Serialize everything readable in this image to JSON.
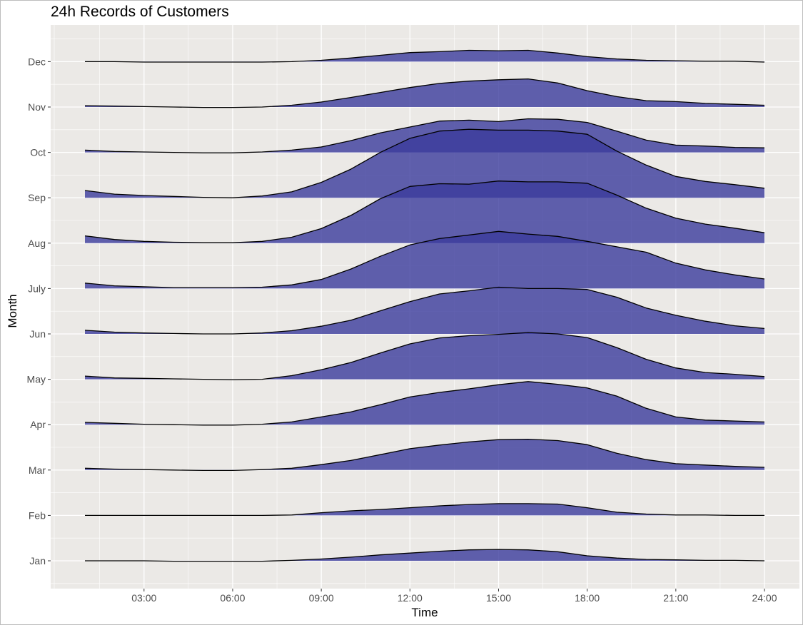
{
  "chart_data": {
    "type": "ridgeline",
    "title": "24h Records of Customers",
    "xlabel": "Time",
    "ylabel": "Month",
    "x_tick_labels": [
      "03:00",
      "06:00",
      "09:00",
      "12:00",
      "15:00",
      "18:00",
      "21:00",
      "24:00"
    ],
    "x_tick_hours": [
      3,
      6,
      9,
      12,
      15,
      18,
      21,
      24
    ],
    "xlim": [
      0,
      25
    ],
    "hours": [
      1,
      2,
      3,
      4,
      5,
      6,
      7,
      8,
      9,
      10,
      11,
      12,
      13,
      14,
      15,
      16,
      17,
      18,
      19,
      20,
      21,
      22,
      23,
      24
    ],
    "row_spacing_units": 1,
    "fill_color": "#3b3b9c",
    "line_color": "#000000",
    "panel_background": "#ebe9e6",
    "grid_color": "#ffffff",
    "grid": true,
    "legend": "none",
    "series": [
      {
        "name": "Jan",
        "values": [
          0.0,
          0.0,
          0.0,
          -0.01,
          -0.01,
          -0.01,
          -0.01,
          0.01,
          0.04,
          0.08,
          0.13,
          0.17,
          0.21,
          0.24,
          0.25,
          0.24,
          0.2,
          0.11,
          0.06,
          0.03,
          0.02,
          0.01,
          0.01,
          0.0
        ]
      },
      {
        "name": "Feb",
        "values": [
          0.0,
          0.0,
          0.0,
          0.0,
          0.0,
          0.0,
          0.0,
          0.01,
          0.06,
          0.1,
          0.13,
          0.17,
          0.21,
          0.24,
          0.26,
          0.26,
          0.25,
          0.17,
          0.07,
          0.03,
          0.01,
          0.01,
          0.0,
          0.0
        ]
      },
      {
        "name": "Mar",
        "values": [
          0.04,
          0.02,
          0.01,
          0.0,
          -0.01,
          -0.01,
          0.01,
          0.04,
          0.12,
          0.21,
          0.34,
          0.47,
          0.55,
          0.62,
          0.67,
          0.68,
          0.65,
          0.56,
          0.37,
          0.23,
          0.14,
          0.11,
          0.08,
          0.06
        ]
      },
      {
        "name": "Apr",
        "values": [
          0.05,
          0.03,
          0.01,
          0.0,
          -0.01,
          -0.01,
          0.01,
          0.06,
          0.17,
          0.28,
          0.44,
          0.61,
          0.71,
          0.79,
          0.88,
          0.95,
          0.89,
          0.81,
          0.63,
          0.36,
          0.17,
          0.1,
          0.08,
          0.06
        ]
      },
      {
        "name": "May",
        "values": [
          0.07,
          0.03,
          0.02,
          0.01,
          0.0,
          -0.01,
          0.0,
          0.08,
          0.21,
          0.37,
          0.58,
          0.78,
          0.91,
          0.96,
          0.99,
          1.03,
          1.0,
          0.92,
          0.7,
          0.44,
          0.25,
          0.15,
          0.11,
          0.06
        ]
      },
      {
        "name": "Jun",
        "values": [
          0.08,
          0.04,
          0.02,
          0.01,
          0.0,
          0.0,
          0.02,
          0.07,
          0.17,
          0.3,
          0.51,
          0.71,
          0.88,
          0.95,
          1.03,
          1.0,
          1.0,
          0.98,
          0.81,
          0.57,
          0.41,
          0.28,
          0.18,
          0.12
        ]
      },
      {
        "name": "July",
        "values": [
          0.12,
          0.06,
          0.04,
          0.02,
          0.02,
          0.02,
          0.03,
          0.08,
          0.2,
          0.43,
          0.71,
          0.96,
          1.1,
          1.18,
          1.26,
          1.2,
          1.15,
          1.04,
          0.92,
          0.8,
          0.56,
          0.41,
          0.3,
          0.21
        ]
      },
      {
        "name": "Aug",
        "values": [
          0.16,
          0.08,
          0.04,
          0.02,
          0.01,
          0.01,
          0.04,
          0.13,
          0.32,
          0.61,
          0.98,
          1.25,
          1.31,
          1.3,
          1.37,
          1.35,
          1.35,
          1.32,
          1.06,
          0.77,
          0.55,
          0.42,
          0.33,
          0.23
        ]
      },
      {
        "name": "Sep",
        "values": [
          0.16,
          0.08,
          0.05,
          0.03,
          0.01,
          0.0,
          0.04,
          0.13,
          0.34,
          0.63,
          1.0,
          1.31,
          1.47,
          1.51,
          1.49,
          1.49,
          1.47,
          1.4,
          1.03,
          0.72,
          0.47,
          0.36,
          0.29,
          0.21
        ]
      },
      {
        "name": "Oct",
        "values": [
          0.05,
          0.02,
          0.01,
          0.0,
          -0.01,
          -0.01,
          0.01,
          0.05,
          0.12,
          0.26,
          0.43,
          0.56,
          0.69,
          0.71,
          0.68,
          0.74,
          0.73,
          0.66,
          0.47,
          0.27,
          0.16,
          0.14,
          0.11,
          0.1
        ]
      },
      {
        "name": "Nov",
        "values": [
          0.03,
          0.02,
          0.01,
          0.0,
          -0.01,
          -0.01,
          0.0,
          0.04,
          0.11,
          0.21,
          0.32,
          0.43,
          0.52,
          0.57,
          0.6,
          0.62,
          0.53,
          0.36,
          0.23,
          0.14,
          0.12,
          0.08,
          0.06,
          0.04
        ]
      },
      {
        "name": "Dec",
        "values": [
          0.0,
          0.0,
          -0.01,
          -0.01,
          -0.01,
          -0.01,
          -0.01,
          0.0,
          0.03,
          0.08,
          0.14,
          0.2,
          0.22,
          0.25,
          0.24,
          0.25,
          0.19,
          0.11,
          0.06,
          0.03,
          0.02,
          0.01,
          0.01,
          -0.01
        ]
      }
    ]
  }
}
